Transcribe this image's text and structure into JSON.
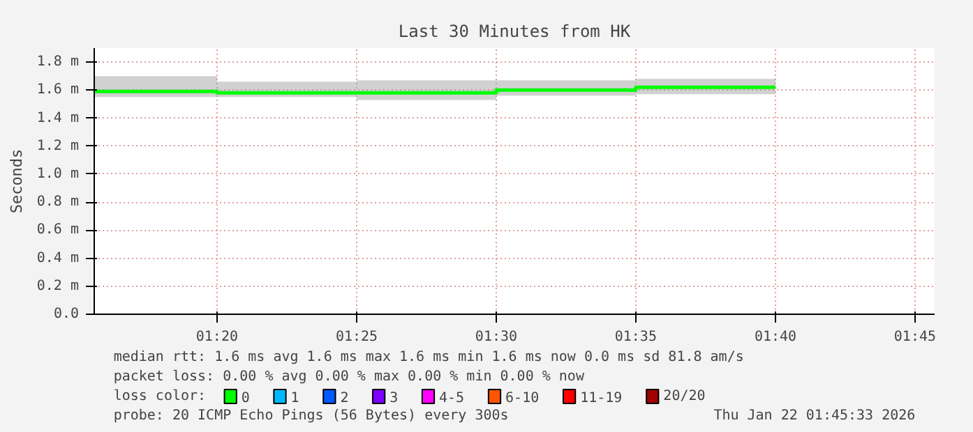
{
  "chart_data": {
    "type": "step",
    "title": "Last 30 Minutes from HK",
    "ylabel": "Seconds",
    "x": [
      1.26,
      1.3333,
      1.4167,
      1.5,
      1.5833,
      1.6667
    ],
    "series": [
      {
        "name": "0",
        "color": "#00ff00",
        "values": [
          1.59,
          1.58,
          1.58,
          1.6,
          1.62,
          1.62
        ],
        "lower": [
          1.55,
          1.55,
          1.53,
          1.56,
          1.57,
          1.57
        ],
        "upper": [
          1.7,
          1.66,
          1.67,
          1.67,
          1.68,
          1.68
        ]
      },
      {
        "name": "1",
        "color": "#00b8ff",
        "values": [
          null,
          null,
          null,
          null,
          null,
          null
        ]
      },
      {
        "name": "2",
        "color": "#0059ff",
        "values": [
          null,
          null,
          null,
          null,
          null,
          null
        ]
      },
      {
        "name": "3",
        "color": "#7e00ff",
        "values": [
          null,
          null,
          null,
          null,
          null,
          null
        ]
      },
      {
        "name": "4-5",
        "color": "#ff00ff",
        "values": [
          null,
          null,
          null,
          null,
          null,
          null
        ]
      },
      {
        "name": "6-10",
        "color": "#ff5500",
        "values": [
          null,
          null,
          null,
          null,
          null,
          null
        ]
      },
      {
        "name": "11-19",
        "color": "#ff0000",
        "values": [
          null,
          null,
          null,
          null,
          null,
          null
        ]
      },
      {
        "name": "20/20",
        "color": "#a10000",
        "values": [
          null,
          null,
          null,
          null,
          null,
          null
        ]
      }
    ],
    "legend": "bottom",
    "legend_title": "loss color:",
    "xlim": [
      1.26,
      1.7617
    ],
    "ylim": [
      0,
      1.9
    ],
    "xticks": [
      {
        "value": 1.3333,
        "label": "01:20"
      },
      {
        "value": 1.4167,
        "label": "01:25"
      },
      {
        "value": 1.5,
        "label": "01:30"
      },
      {
        "value": 1.5833,
        "label": "01:35"
      },
      {
        "value": 1.6667,
        "label": "01:40"
      },
      {
        "value": 1.75,
        "label": "01:45"
      }
    ],
    "yticks": [
      {
        "value": 0,
        "label": "0.0"
      },
      {
        "value": 0.2,
        "label": "0.2 m"
      },
      {
        "value": 0.4,
        "label": "0.4 m"
      },
      {
        "value": 0.6,
        "label": "0.6 m"
      },
      {
        "value": 0.8,
        "label": "0.8 m"
      },
      {
        "value": 1.0,
        "label": "1.0 m"
      },
      {
        "value": 1.2,
        "label": "1.2 m"
      },
      {
        "value": 1.4,
        "label": "1.4 m"
      },
      {
        "value": 1.6,
        "label": "1.6 m"
      },
      {
        "value": 1.8,
        "label": "1.8 m"
      }
    ],
    "grid": true,
    "marker": "none",
    "line_style": "solid",
    "annotations": [
      "median rtt:  1.6 ms avg  1.6 ms max  1.6 ms min  1.6 ms now  0.0 ms sd  81.8   am/s",
      "packet loss: 0.00 % avg  0.00 % max  0.00 % min  0.00 % now",
      "probe:       20 ICMP Echo Pings (56 Bytes) every 300s",
      "Thu Jan 22 01:45:33 2026"
    ]
  }
}
